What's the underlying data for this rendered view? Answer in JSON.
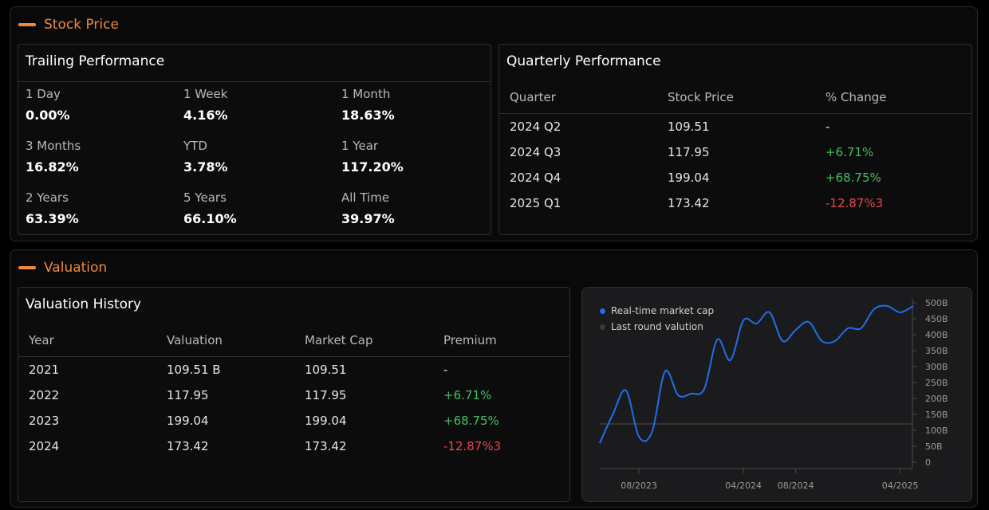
{
  "stock": {
    "title": "Stock Price",
    "trailing": {
      "title": "Trailing Performance",
      "items": [
        {
          "label": "1 Day",
          "value": "0.00%"
        },
        {
          "label": "1 Week",
          "value": "4.16%"
        },
        {
          "label": "1 Month",
          "value": "18.63%"
        },
        {
          "label": "3 Months",
          "value": "16.82%"
        },
        {
          "label": "YTD",
          "value": "3.78%"
        },
        {
          "label": "1 Year",
          "value": "117.20%"
        },
        {
          "label": "2 Years",
          "value": "63.39%"
        },
        {
          "label": "5 Years",
          "value": "66.10%"
        },
        {
          "label": "All Time",
          "value": "39.97%"
        }
      ]
    },
    "quarterly": {
      "title": "Quarterly Performance",
      "headers": [
        "Quarter",
        "Stock Price",
        "% Change"
      ],
      "rows": [
        {
          "quarter": "2024 Q2",
          "price": "109.51",
          "change": "-"
        },
        {
          "quarter": "2024 Q3",
          "price": "117.95",
          "change": "+6.71%"
        },
        {
          "quarter": "2024 Q4",
          "price": "199.04",
          "change": "+68.75%"
        },
        {
          "quarter": "2025 Q1",
          "price": "173.42",
          "change": "-12.87%3"
        }
      ]
    }
  },
  "valuation": {
    "title": "Valuation",
    "history": {
      "title": "Valuation History",
      "headers": [
        "Year",
        "Valuation",
        "Market Cap",
        "Premium"
      ],
      "rows": [
        {
          "year": "2021",
          "valuation": "109.51 B",
          "market_cap": "109.51",
          "premium": "-"
        },
        {
          "year": "2022",
          "valuation": "117.95",
          "market_cap": "117.95",
          "premium": "+6.71%"
        },
        {
          "year": "2023",
          "valuation": "199.04",
          "market_cap": "199.04",
          "premium": "+68.75%"
        },
        {
          "year": "2024",
          "valuation": "173.42",
          "market_cap": "173.42",
          "premium": "-12.87%3"
        }
      ]
    }
  },
  "colors": {
    "accent": "#f0883e",
    "positive": "#3fbf61",
    "negative": "#e5484d",
    "series_realtime": "#1f6feb",
    "series_lastround": "#3a3a3a"
  },
  "chart_data": {
    "type": "line",
    "legend_position": "top-left",
    "y_axis_position": "right",
    "y_ticks": [
      "0",
      "50B",
      "100B",
      "150B",
      "200B",
      "250B",
      "300B",
      "350B",
      "400B",
      "450B",
      "500B"
    ],
    "ylim": [
      0,
      500
    ],
    "x_ticks": [
      "08/2023",
      "04/2024",
      "08/2024",
      "04/2025"
    ],
    "series": [
      {
        "name": "Real-time market cap",
        "x": [
          "05/2023",
          "06/2023",
          "07/2023",
          "08/2023",
          "09/2023",
          "10/2023",
          "11/2023",
          "12/2023",
          "01/2024",
          "02/2024",
          "03/2024",
          "04/2024",
          "05/2024",
          "06/2024",
          "07/2024",
          "08/2024",
          "09/2024",
          "10/2024",
          "11/2024",
          "12/2024",
          "01/2025",
          "02/2025",
          "03/2025",
          "04/2025",
          "05/2025"
        ],
        "values": [
          60,
          150,
          225,
          80,
          95,
          285,
          210,
          215,
          230,
          385,
          320,
          445,
          435,
          470,
          380,
          415,
          440,
          380,
          380,
          420,
          420,
          480,
          490,
          470,
          490
        ]
      },
      {
        "name": "Last round valution",
        "x": [
          "05/2023",
          "05/2025"
        ],
        "values": [
          120,
          120
        ]
      }
    ]
  }
}
